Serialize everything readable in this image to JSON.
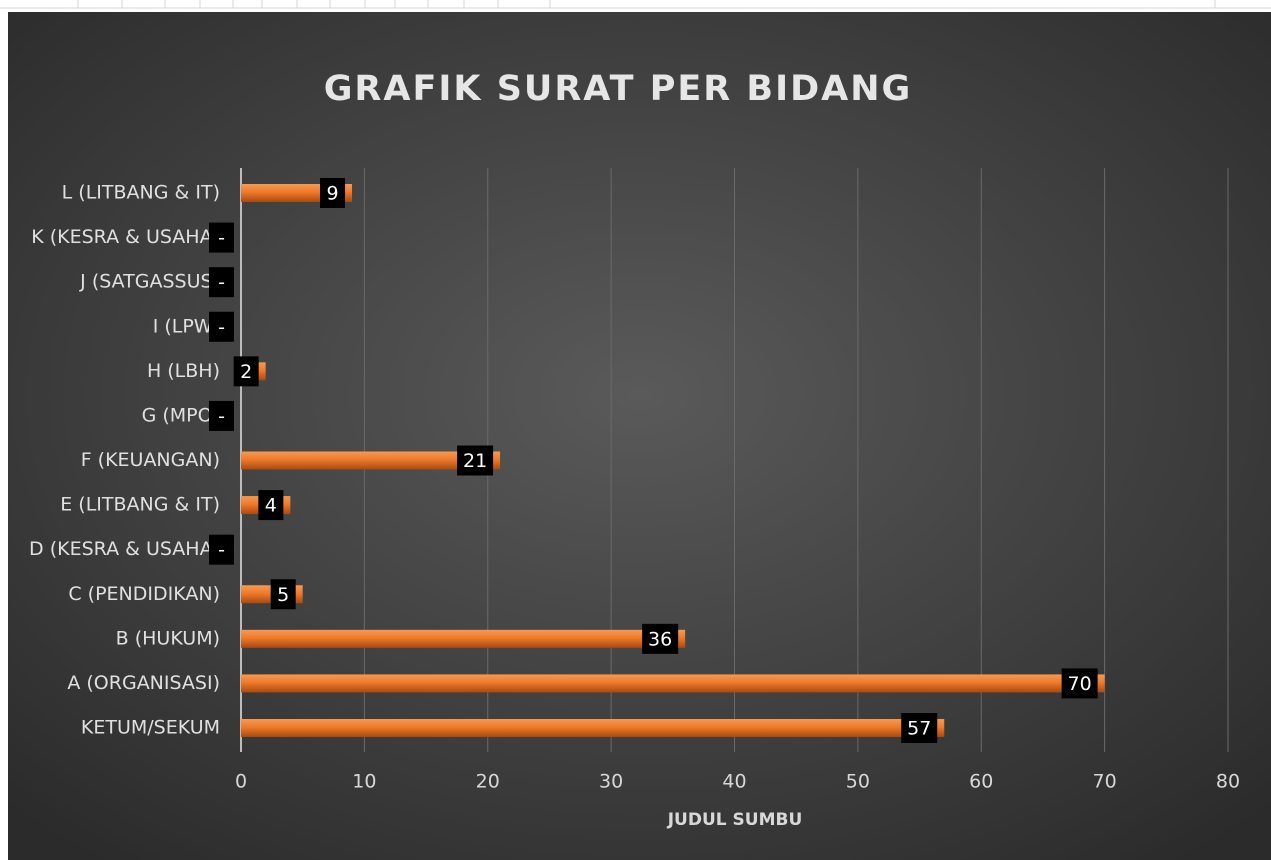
{
  "chart_data": {
    "type": "bar",
    "orientation": "horizontal",
    "title": "GRAFIK SURAT PER BIDANG",
    "x_label": "JUDUL SUMBU",
    "categories": [
      "KETUM/SEKUM",
      "A (ORGANISASI)",
      "B (HUKUM)",
      "C (PENDIDIKAN)",
      "D (KESRA & USAHA)",
      "E (LITBANG & IT)",
      "F (KEUANGAN)",
      "G (MPO)",
      "H (LBH)",
      "I (LPW)",
      "J (SATGASSUS)",
      "K (KESRA & USAHA)",
      "L (LITBANG & IT)"
    ],
    "values": [
      57,
      70,
      36,
      5,
      0,
      4,
      21,
      0,
      2,
      0,
      0,
      0,
      9
    ],
    "value_labels": [
      "57",
      "70",
      "36",
      "5",
      "-",
      "4",
      "21",
      "-",
      "2",
      "-",
      "-",
      "-",
      "9"
    ],
    "color": "#ef7a2a",
    "xlim": [
      0,
      80
    ],
    "xticks": [
      0,
      10,
      20,
      30,
      40,
      50,
      60,
      70,
      80
    ],
    "grid": true
  }
}
